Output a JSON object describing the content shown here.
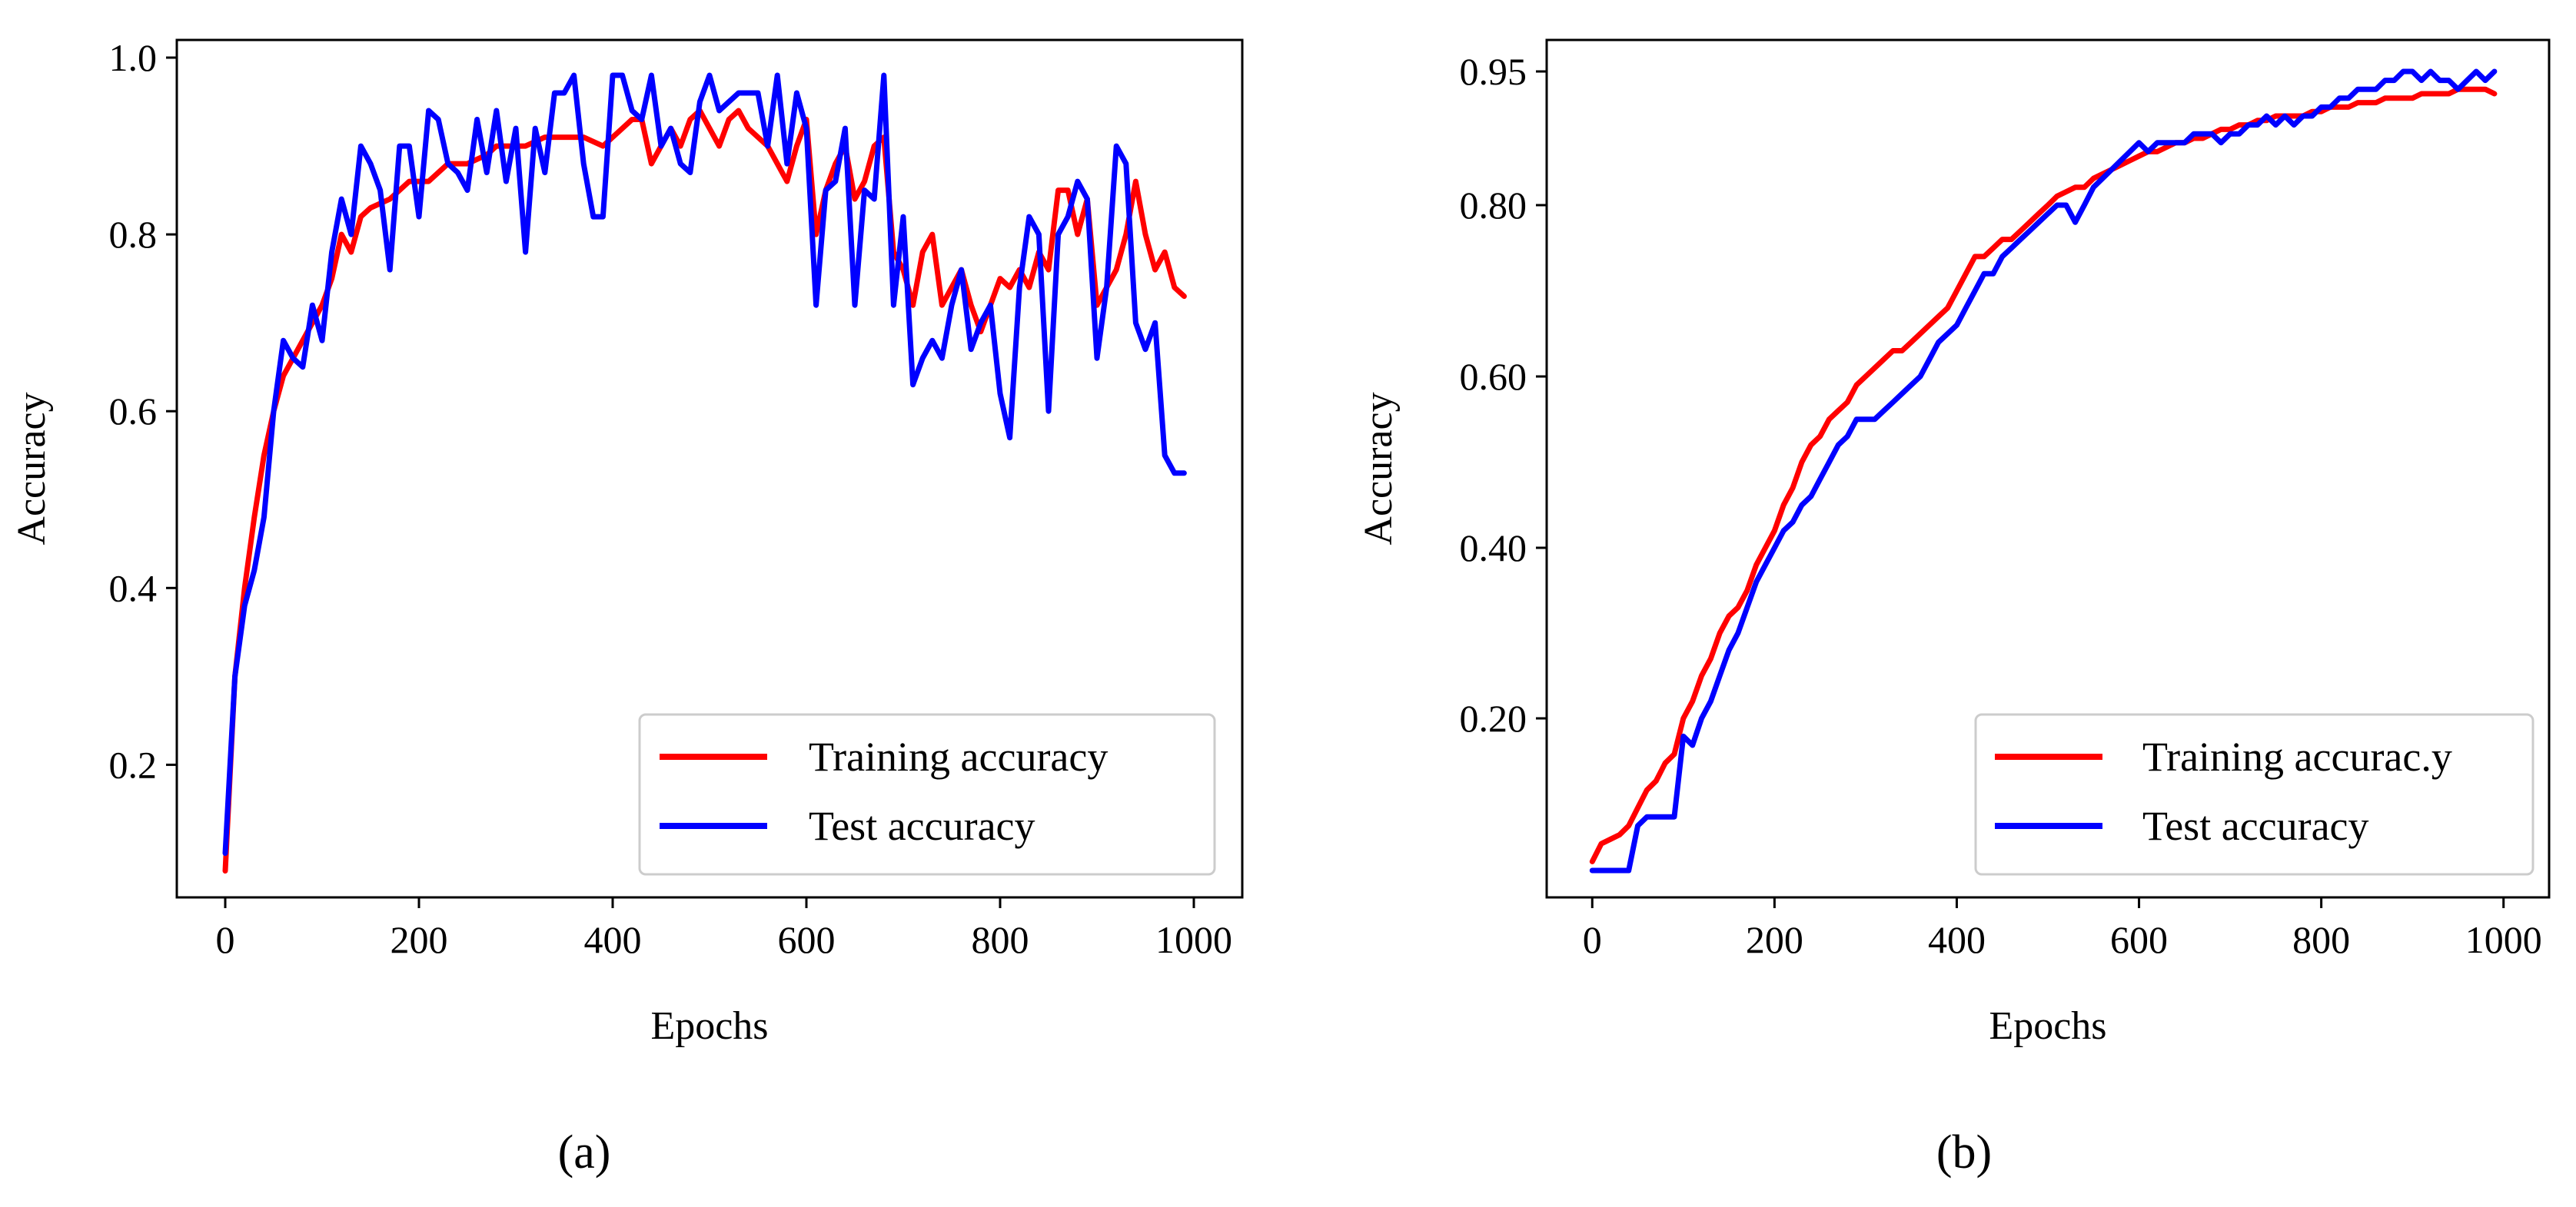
{
  "chart_data": [
    {
      "type": "line",
      "panel_label": "(a)",
      "title": "",
      "xlabel": "Epochs",
      "ylabel": "Accuracy",
      "xlim": [
        -50,
        1050
      ],
      "ylim": [
        0.05,
        1.02
      ],
      "xticks": [
        0,
        200,
        400,
        600,
        800,
        1000
      ],
      "xtick_labels": [
        "0",
        "200",
        "400",
        "600",
        "800",
        "1000"
      ],
      "yticks": [
        0.2,
        0.4,
        0.6,
        0.8,
        1.0
      ],
      "ytick_labels": [
        "0.2",
        "0.4",
        "0.6",
        "0.8",
        "1.0"
      ],
      "grid": false,
      "legend_position": "bottom-right",
      "series": [
        {
          "name": "Training accuracy",
          "color": "#ff0000",
          "x": [
            0,
            10,
            20,
            30,
            40,
            50,
            60,
            70,
            80,
            90,
            100,
            110,
            120,
            130,
            140,
            150,
            160,
            170,
            180,
            190,
            200,
            210,
            220,
            230,
            240,
            250,
            260,
            270,
            280,
            290,
            300,
            310,
            320,
            330,
            340,
            350,
            360,
            370,
            380,
            390,
            400,
            410,
            420,
            430,
            440,
            450,
            460,
            470,
            480,
            490,
            500,
            510,
            520,
            530,
            540,
            550,
            560,
            570,
            580,
            590,
            600,
            610,
            620,
            630,
            640,
            650,
            660,
            670,
            680,
            690,
            700,
            710,
            720,
            730,
            740,
            750,
            760,
            770,
            780,
            790,
            800,
            810,
            820,
            830,
            840,
            850,
            860,
            870,
            880,
            890,
            900,
            910,
            920,
            930,
            940,
            950,
            960,
            970,
            980,
            990
          ],
          "values": [
            0.08,
            0.3,
            0.4,
            0.48,
            0.55,
            0.6,
            0.64,
            0.66,
            0.68,
            0.7,
            0.72,
            0.75,
            0.8,
            0.78,
            0.82,
            0.83,
            0.835,
            0.84,
            0.85,
            0.86,
            0.86,
            0.86,
            0.87,
            0.88,
            0.88,
            0.88,
            0.885,
            0.89,
            0.9,
            0.9,
            0.9,
            0.9,
            0.905,
            0.91,
            0.91,
            0.91,
            0.91,
            0.91,
            0.905,
            0.9,
            0.91,
            0.92,
            0.93,
            0.93,
            0.88,
            0.9,
            0.92,
            0.9,
            0.93,
            0.94,
            0.92,
            0.9,
            0.93,
            0.94,
            0.92,
            0.91,
            0.9,
            0.88,
            0.86,
            0.9,
            0.93,
            0.8,
            0.85,
            0.88,
            0.9,
            0.84,
            0.86,
            0.9,
            0.91,
            0.78,
            0.76,
            0.72,
            0.78,
            0.8,
            0.72,
            0.74,
            0.76,
            0.72,
            0.69,
            0.72,
            0.75,
            0.74,
            0.76,
            0.74,
            0.78,
            0.76,
            0.85,
            0.85,
            0.8,
            0.84,
            0.72,
            0.74,
            0.76,
            0.8,
            0.86,
            0.8,
            0.76,
            0.78,
            0.74,
            0.73
          ]
        },
        {
          "name": "Test accuracy",
          "color": "#0000ff",
          "x": [
            0,
            10,
            20,
            30,
            40,
            50,
            60,
            70,
            80,
            90,
            100,
            110,
            120,
            130,
            140,
            150,
            160,
            170,
            180,
            190,
            200,
            210,
            220,
            230,
            240,
            250,
            260,
            270,
            280,
            290,
            300,
            310,
            320,
            330,
            340,
            350,
            360,
            370,
            380,
            390,
            400,
            410,
            420,
            430,
            440,
            450,
            460,
            470,
            480,
            490,
            500,
            510,
            520,
            530,
            540,
            550,
            560,
            570,
            580,
            590,
            600,
            610,
            620,
            630,
            640,
            650,
            660,
            670,
            680,
            690,
            700,
            710,
            720,
            730,
            740,
            750,
            760,
            770,
            780,
            790,
            800,
            810,
            820,
            830,
            840,
            850,
            860,
            870,
            880,
            890,
            900,
            910,
            920,
            930,
            940,
            950,
            960,
            970,
            980,
            990
          ],
          "values": [
            0.1,
            0.3,
            0.38,
            0.42,
            0.48,
            0.6,
            0.68,
            0.66,
            0.65,
            0.72,
            0.68,
            0.78,
            0.84,
            0.8,
            0.9,
            0.88,
            0.85,
            0.76,
            0.9,
            0.9,
            0.82,
            0.94,
            0.93,
            0.88,
            0.87,
            0.85,
            0.93,
            0.87,
            0.94,
            0.86,
            0.92,
            0.78,
            0.92,
            0.87,
            0.96,
            0.96,
            0.98,
            0.88,
            0.82,
            0.82,
            0.98,
            0.98,
            0.94,
            0.93,
            0.98,
            0.9,
            0.92,
            0.88,
            0.87,
            0.95,
            0.98,
            0.94,
            0.95,
            0.96,
            0.96,
            0.96,
            0.9,
            0.98,
            0.88,
            0.96,
            0.92,
            0.72,
            0.85,
            0.86,
            0.92,
            0.72,
            0.85,
            0.84,
            0.98,
            0.72,
            0.82,
            0.63,
            0.66,
            0.68,
            0.66,
            0.72,
            0.76,
            0.67,
            0.7,
            0.72,
            0.62,
            0.57,
            0.74,
            0.82,
            0.8,
            0.6,
            0.8,
            0.82,
            0.86,
            0.84,
            0.66,
            0.74,
            0.9,
            0.88,
            0.7,
            0.67,
            0.7,
            0.55,
            0.53,
            0.53
          ]
        }
      ]
    },
    {
      "type": "line",
      "panel_label": "(b)",
      "title": "",
      "xlabel": "Epochs",
      "ylabel": "Accuracy",
      "xlim": [
        -50,
        1050
      ],
      "ylim": [
        0.0,
        0.975
      ],
      "xticks": [
        0,
        200,
        400,
        600,
        800,
        1000
      ],
      "xtick_labels": [
        "0",
        "200",
        "400",
        "600",
        "800",
        "1000"
      ],
      "yticks": [
        0.2,
        0.4,
        0.6,
        0.8,
        0.95
      ],
      "ytick_labels": [
        "0.20",
        "0.40",
        "0.60",
        "0.80",
        "0.95"
      ],
      "y_scale_note": "axis is nonlinear: 0.20→0.20, 0.40→0.40, 0.60→0.60, 0.80→0.80 at equal spacing, 0.95 spaced more widely",
      "grid": false,
      "legend_position": "bottom-right",
      "series": [
        {
          "name": "Training accurac.y",
          "color": "#ff0000",
          "x": [
            0,
            10,
            20,
            30,
            40,
            50,
            60,
            70,
            80,
            90,
            100,
            110,
            120,
            130,
            140,
            150,
            160,
            170,
            180,
            190,
            200,
            210,
            220,
            230,
            240,
            250,
            260,
            270,
            280,
            290,
            300,
            310,
            320,
            330,
            340,
            350,
            360,
            370,
            380,
            390,
            400,
            410,
            420,
            430,
            440,
            450,
            460,
            470,
            480,
            490,
            500,
            510,
            520,
            530,
            540,
            550,
            560,
            570,
            580,
            590,
            600,
            610,
            620,
            630,
            640,
            650,
            660,
            670,
            680,
            690,
            700,
            710,
            720,
            730,
            740,
            750,
            760,
            770,
            780,
            790,
            800,
            810,
            820,
            830,
            840,
            850,
            860,
            870,
            880,
            890,
            900,
            910,
            920,
            930,
            940,
            950,
            960,
            970,
            980,
            990
          ],
          "values": [
            0.04,
            0.06,
            0.065,
            0.07,
            0.08,
            0.1,
            0.12,
            0.13,
            0.15,
            0.16,
            0.2,
            0.22,
            0.25,
            0.27,
            0.3,
            0.32,
            0.33,
            0.35,
            0.38,
            0.4,
            0.42,
            0.45,
            0.47,
            0.5,
            0.52,
            0.53,
            0.55,
            0.56,
            0.57,
            0.59,
            0.6,
            0.61,
            0.62,
            0.63,
            0.63,
            0.64,
            0.65,
            0.66,
            0.67,
            0.68,
            0.7,
            0.72,
            0.74,
            0.74,
            0.75,
            0.76,
            0.76,
            0.77,
            0.78,
            0.79,
            0.8,
            0.81,
            0.815,
            0.82,
            0.82,
            0.83,
            0.835,
            0.84,
            0.845,
            0.85,
            0.855,
            0.86,
            0.86,
            0.865,
            0.87,
            0.87,
            0.875,
            0.875,
            0.88,
            0.885,
            0.885,
            0.89,
            0.89,
            0.895,
            0.895,
            0.9,
            0.9,
            0.9,
            0.9,
            0.905,
            0.905,
            0.91,
            0.91,
            0.91,
            0.915,
            0.915,
            0.915,
            0.92,
            0.92,
            0.92,
            0.92,
            0.925,
            0.925,
            0.925,
            0.925,
            0.93,
            0.93,
            0.93,
            0.93,
            0.925
          ]
        },
        {
          "name": "Test accuracy",
          "color": "#0000ff",
          "x": [
            0,
            10,
            20,
            30,
            40,
            50,
            60,
            70,
            80,
            90,
            100,
            110,
            120,
            130,
            140,
            150,
            160,
            170,
            180,
            190,
            200,
            210,
            220,
            230,
            240,
            250,
            260,
            270,
            280,
            290,
            300,
            310,
            320,
            330,
            340,
            350,
            360,
            370,
            380,
            390,
            400,
            410,
            420,
            430,
            440,
            450,
            460,
            470,
            480,
            490,
            500,
            510,
            520,
            530,
            540,
            550,
            560,
            570,
            580,
            590,
            600,
            610,
            620,
            630,
            640,
            650,
            660,
            670,
            680,
            690,
            700,
            710,
            720,
            730,
            740,
            750,
            760,
            770,
            780,
            790,
            800,
            810,
            820,
            830,
            840,
            850,
            860,
            870,
            880,
            890,
            900,
            910,
            920,
            930,
            940,
            950,
            960,
            970,
            980,
            990
          ],
          "values": [
            0.03,
            0.03,
            0.03,
            0.03,
            0.03,
            0.08,
            0.09,
            0.09,
            0.09,
            0.09,
            0.18,
            0.17,
            0.2,
            0.22,
            0.25,
            0.28,
            0.3,
            0.33,
            0.36,
            0.38,
            0.4,
            0.42,
            0.43,
            0.45,
            0.46,
            0.48,
            0.5,
            0.52,
            0.53,
            0.55,
            0.55,
            0.55,
            0.56,
            0.57,
            0.58,
            0.59,
            0.6,
            0.62,
            0.64,
            0.65,
            0.66,
            0.68,
            0.7,
            0.72,
            0.72,
            0.74,
            0.75,
            0.76,
            0.77,
            0.78,
            0.79,
            0.8,
            0.8,
            0.78,
            0.8,
            0.82,
            0.83,
            0.84,
            0.85,
            0.86,
            0.87,
            0.86,
            0.87,
            0.87,
            0.87,
            0.87,
            0.88,
            0.88,
            0.88,
            0.87,
            0.88,
            0.88,
            0.89,
            0.89,
            0.9,
            0.89,
            0.9,
            0.89,
            0.9,
            0.9,
            0.91,
            0.91,
            0.92,
            0.92,
            0.93,
            0.93,
            0.93,
            0.94,
            0.94,
            0.95,
            0.95,
            0.94,
            0.95,
            0.94,
            0.94,
            0.93,
            0.94,
            0.95,
            0.94,
            0.95
          ]
        }
      ]
    }
  ]
}
